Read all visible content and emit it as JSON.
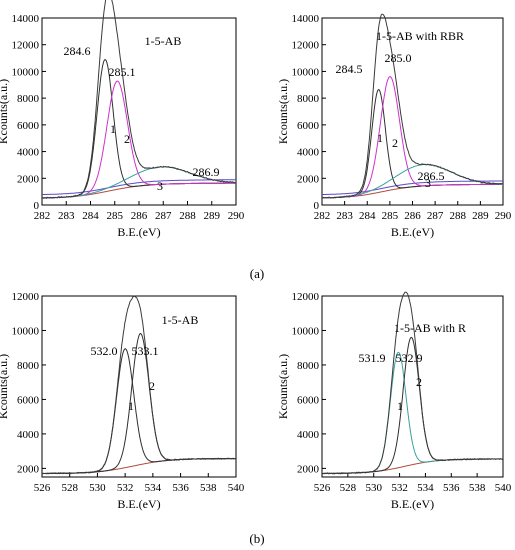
{
  "figure": {
    "label_a": "(a)",
    "label_b": "(b)"
  },
  "colors": {
    "envelope": "#3a3a3a",
    "peak1": "#2f2f2f",
    "peak2": "#cc33cc",
    "peak3": "#3aa0a0",
    "baseline": "#b04a3a",
    "bg": "#5a4ac8"
  },
  "chart_data": [
    {
      "type": "line",
      "title": "1-5-AB",
      "xlabel": "B.E.(eV)",
      "ylabel": "Kcounts(a.u.)",
      "xlim": [
        282,
        290
      ],
      "ylim": [
        0,
        14000
      ],
      "xticks": [
        282,
        283,
        284,
        285,
        286,
        287,
        288,
        289,
        290
      ],
      "yticks": [
        0,
        2000,
        4000,
        6000,
        8000,
        10000,
        12000,
        14000
      ],
      "background": 500,
      "peaks": [
        {
          "center": 284.6,
          "height": 9900,
          "sigma": 0.33,
          "label": "284.6",
          "index": "1",
          "color": "peak1"
        },
        {
          "center": 285.1,
          "height": 8100,
          "sigma": 0.42,
          "label": "285.1",
          "index": "2",
          "color": "peak2"
        },
        {
          "center": 286.9,
          "height": 1300,
          "sigma": 1.2,
          "label": "286.9",
          "index": "3",
          "color": "peak3"
        }
      ]
    },
    {
      "type": "line",
      "title": "1-5-AB with RBR",
      "xlabel": "B.E.(eV)",
      "ylabel": "Kcounts(a.u.)",
      "xlim": [
        282,
        290
      ],
      "ylim": [
        0,
        14000
      ],
      "xticks": [
        282,
        283,
        284,
        285,
        286,
        287,
        288,
        289,
        290
      ],
      "yticks": [
        0,
        2000,
        4000,
        6000,
        8000,
        10000,
        12000,
        14000
      ],
      "background": 500,
      "peaks": [
        {
          "center": 284.5,
          "height": 7700,
          "sigma": 0.3,
          "label": "284.5",
          "index": "1",
          "color": "peak1"
        },
        {
          "center": 285.0,
          "height": 8500,
          "sigma": 0.42,
          "label": "285.0",
          "index": "2",
          "color": "peak2"
        },
        {
          "center": 286.5,
          "height": 1600,
          "sigma": 1.2,
          "label": "286.5",
          "index": "3",
          "color": "peak3"
        }
      ]
    },
    {
      "type": "line",
      "title": "1-5-AB",
      "xlabel": "B.E.(eV)",
      "ylabel": "Kcounts(a.u.)",
      "xlim": [
        526,
        540
      ],
      "ylim": [
        1500,
        12000
      ],
      "xticks": [
        526,
        528,
        530,
        532,
        534,
        536,
        538,
        540
      ],
      "yticks": [
        2000,
        4000,
        6000,
        8000,
        10000,
        12000
      ],
      "background": 1700,
      "peaks": [
        {
          "center": 532.0,
          "height": 6900,
          "sigma": 0.62,
          "label": "532.0",
          "index": "1",
          "color": "peak1"
        },
        {
          "center": 533.1,
          "height": 7600,
          "sigma": 0.62,
          "label": "533.1",
          "index": "2",
          "color": "peak1"
        }
      ]
    },
    {
      "type": "line",
      "title": "1-5-AB with R",
      "xlabel": "B.E.(eV)",
      "ylabel": "Kcounts(a.u.)",
      "xlim": [
        526,
        540
      ],
      "ylim": [
        1500,
        12000
      ],
      "xticks": [
        526,
        528,
        530,
        532,
        534,
        536,
        538,
        540
      ],
      "yticks": [
        2000,
        4000,
        6000,
        8000,
        10000,
        12000
      ],
      "background": 1700,
      "peaks": [
        {
          "center": 531.9,
          "height": 6700,
          "sigma": 0.6,
          "label": "531.9",
          "index": "1",
          "color": "peak3"
        },
        {
          "center": 532.9,
          "height": 7400,
          "sigma": 0.62,
          "label": "532.9",
          "index": "2",
          "color": "peak1"
        }
      ]
    }
  ]
}
